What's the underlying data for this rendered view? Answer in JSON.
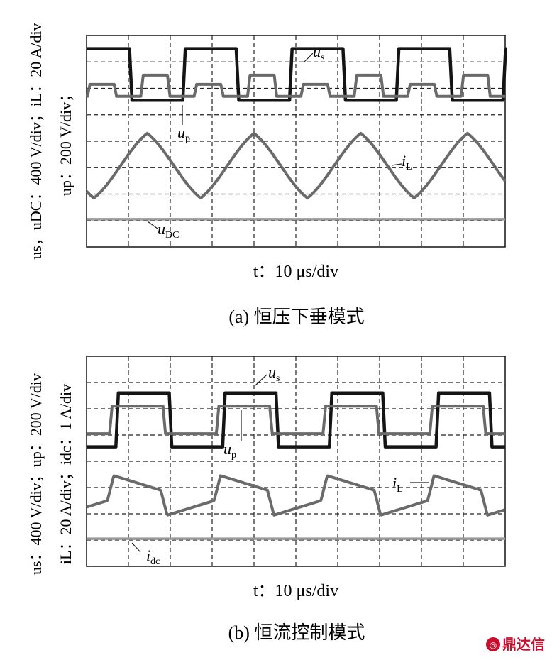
{
  "chart_data": [
    {
      "type": "line",
      "panel": "a",
      "caption": "(a) 恒压下垂模式",
      "xlabel": "t：10 μs/div",
      "ylabel_line1": "us，uDC：400 V/div；iL：20 A/div",
      "ylabel_line2": "up：200 V/div；",
      "grid": true,
      "divisions": {
        "x": 10,
        "y": 8
      },
      "time_per_div_us": 10,
      "period_us": 25.5,
      "series": [
        {
          "name": "us",
          "kind": "square",
          "high_div": 7.5,
          "low_div": 5.55,
          "first_rise_us": 23.0,
          "duty": 0.5
        },
        {
          "name": "up",
          "kind": "stepped",
          "levels_div": [
            6.15,
            5.7,
            6.5,
            5.7
          ],
          "first_edge_us": 0.2
        },
        {
          "name": "iL",
          "kind": "triangle",
          "peak_div": 4.3,
          "trough_div": 1.85,
          "first_peak_us": 14.5
        },
        {
          "name": "uDC",
          "kind": "flat",
          "level_div": 1.05
        }
      ],
      "annotations": [
        "u_s",
        "u_p",
        "i_L",
        "u_DC"
      ]
    },
    {
      "type": "line",
      "panel": "b",
      "caption": "(b) 恒流控制模式",
      "xlabel": "t：10 μs/div",
      "ylabel_line1": "us：400 V/div；up：200 V/div",
      "ylabel_line2": "iL：20 A/div；idc：1 A/div",
      "grid": true,
      "divisions": {
        "x": 10,
        "y": 8
      },
      "time_per_div_us": 10,
      "period_us": 25.5,
      "series": [
        {
          "name": "us",
          "kind": "square",
          "high_div": 6.6,
          "low_div": 4.55,
          "first_rise_us": 7.0,
          "duty": 0.5
        },
        {
          "name": "up",
          "kind": "square",
          "high_div": 6.1,
          "low_div": 5.05,
          "first_rise_us": 5.5,
          "duty": 0.5
        },
        {
          "name": "iL",
          "kind": "ramp",
          "peak_div": 3.45,
          "trough_div": 1.95,
          "first_peak_us": 6.5
        },
        {
          "name": "idc",
          "kind": "flat",
          "level_div": 1.05
        }
      ],
      "annotations": [
        "u_s",
        "u_p",
        "i_L",
        "i_dc"
      ]
    }
  ],
  "ann": {
    "a_us": "u",
    "a_us_sub": "s",
    "a_up": "u",
    "a_up_sub": "p",
    "a_iL": "i",
    "a_iL_sub": "L",
    "a_uDC": "u",
    "a_uDC_sub": "DC",
    "b_us": "u",
    "b_us_sub": "s",
    "b_up": "u",
    "b_up_sub": "p",
    "b_iL": "i",
    "b_iL_sub": "L",
    "b_idc": "i",
    "b_idc_sub": "dc"
  },
  "watermark": {
    "text": "鼎达信",
    "color": "#c8102e"
  }
}
